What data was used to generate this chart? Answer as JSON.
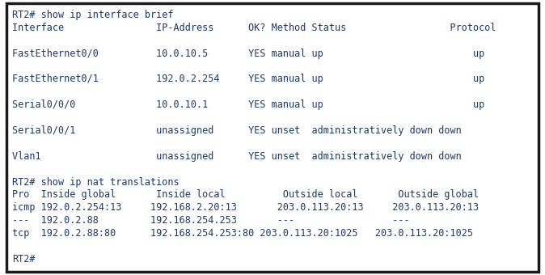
{
  "bg_color": "#ffffff",
  "border_color": "#1a1a1a",
  "text_color": "#1a3a6b",
  "font_size": 8.5,
  "figsize": [
    6.74,
    3.4
  ],
  "dpi": 100,
  "lines": [
    "RT2# show ip interface brief",
    "Interface                IP-Address      OK? Method Status                  Protocol",
    "",
    "FastEthernet0/0          10.0.10.5       YES manual up                          up",
    "",
    "FastEthernet0/1          192.0.2.254     YES manual up                          up",
    "",
    "Serial0/0/0              10.0.10.1       YES manual up                          up",
    "",
    "Serial0/0/1              unassigned      YES unset  administratively down down",
    "",
    "Vlan1                    unassigned      YES unset  administratively down down",
    "",
    "RT2# show ip nat translations",
    "Pro  Inside global       Inside local          Outside local       Outside global",
    "icmp 192.0.2.254:13     192.168.2.20:13       203.0.113.20:13     203.0.113.20:13",
    "---  192.0.2.88         192.168.254.253       ---                 ---",
    "tcp  192.0.2.88:80      192.168.254.253:80 203.0.113.20:1025   203.0.113.20:1025",
    "",
    "RT2#"
  ]
}
